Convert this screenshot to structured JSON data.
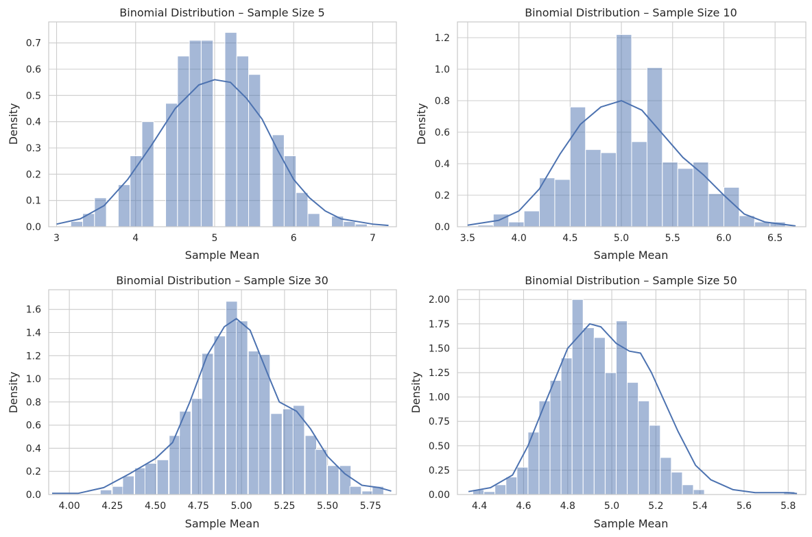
{
  "style": {
    "bar_color": "#4c72b0",
    "grid_color": "#cccccc",
    "frame_color": "#cccccc"
  },
  "chart_data": [
    {
      "type": "bar",
      "title": "Binomial Distribution – Sample Size 5",
      "xlabel": "Sample Mean",
      "ylabel": "Density",
      "xlim": [
        2.9,
        7.3
      ],
      "ylim": [
        0,
        0.78
      ],
      "xticks": [
        3,
        4,
        5,
        6,
        7
      ],
      "xtick_labels": [
        "3",
        "4",
        "5",
        "6",
        "7"
      ],
      "yticks": [
        0.0,
        0.1,
        0.2,
        0.3,
        0.4,
        0.5,
        0.6,
        0.7
      ],
      "ytick_labels": [
        "0.0",
        "0.1",
        "0.2",
        "0.3",
        "0.4",
        "0.5",
        "0.6",
        "0.7"
      ],
      "bin_width": 0.15,
      "bins": [
        {
          "x": 3.18,
          "h": 0.02
        },
        {
          "x": 3.33,
          "h": 0.05
        },
        {
          "x": 3.48,
          "h": 0.11
        },
        {
          "x": 3.78,
          "h": 0.16
        },
        {
          "x": 3.93,
          "h": 0.27
        },
        {
          "x": 4.08,
          "h": 0.4
        },
        {
          "x": 4.38,
          "h": 0.47
        },
        {
          "x": 4.53,
          "h": 0.65
        },
        {
          "x": 4.68,
          "h": 0.71
        },
        {
          "x": 4.83,
          "h": 0.71
        },
        {
          "x": 5.13,
          "h": 0.74
        },
        {
          "x": 5.28,
          "h": 0.65
        },
        {
          "x": 5.43,
          "h": 0.58
        },
        {
          "x": 5.73,
          "h": 0.35
        },
        {
          "x": 5.88,
          "h": 0.27
        },
        {
          "x": 6.03,
          "h": 0.13
        },
        {
          "x": 6.18,
          "h": 0.05
        },
        {
          "x": 6.48,
          "h": 0.04
        },
        {
          "x": 6.63,
          "h": 0.02
        },
        {
          "x": 6.78,
          "h": 0.01
        }
      ],
      "kde": [
        [
          3.0,
          0.01
        ],
        [
          3.3,
          0.03
        ],
        [
          3.6,
          0.08
        ],
        [
          3.9,
          0.18
        ],
        [
          4.2,
          0.31
        ],
        [
          4.5,
          0.45
        ],
        [
          4.8,
          0.54
        ],
        [
          5.0,
          0.56
        ],
        [
          5.2,
          0.55
        ],
        [
          5.4,
          0.49
        ],
        [
          5.6,
          0.41
        ],
        [
          5.8,
          0.29
        ],
        [
          6.0,
          0.18
        ],
        [
          6.2,
          0.11
        ],
        [
          6.4,
          0.06
        ],
        [
          6.6,
          0.03
        ],
        [
          6.8,
          0.02
        ],
        [
          7.0,
          0.01
        ],
        [
          7.2,
          0.005
        ]
      ]
    },
    {
      "type": "bar",
      "title": "Binomial Distribution – Sample Size 10",
      "xlabel": "Sample Mean",
      "ylabel": "Density",
      "xlim": [
        3.4,
        6.8
      ],
      "ylim": [
        0,
        1.3
      ],
      "xticks": [
        3.5,
        4.0,
        4.5,
        5.0,
        5.5,
        6.0,
        6.5
      ],
      "xtick_labels": [
        "3.5",
        "4.0",
        "4.5",
        "5.0",
        "5.5",
        "6.0",
        "6.5"
      ],
      "yticks": [
        0.0,
        0.2,
        0.4,
        0.6,
        0.8,
        1.0,
        1.2
      ],
      "ytick_labels": [
        "0.0",
        "0.2",
        "0.4",
        "0.6",
        "0.8",
        "1.0",
        "1.2"
      ],
      "bin_width": 0.15,
      "bins": [
        {
          "x": 3.6,
          "h": 0.01
        },
        {
          "x": 3.75,
          "h": 0.08
        },
        {
          "x": 3.9,
          "h": 0.03
        },
        {
          "x": 4.05,
          "h": 0.1
        },
        {
          "x": 4.2,
          "h": 0.31
        },
        {
          "x": 4.35,
          "h": 0.3
        },
        {
          "x": 4.5,
          "h": 0.76
        },
        {
          "x": 4.65,
          "h": 0.49
        },
        {
          "x": 4.8,
          "h": 0.47
        },
        {
          "x": 4.95,
          "h": 1.22
        },
        {
          "x": 5.1,
          "h": 0.54
        },
        {
          "x": 5.25,
          "h": 1.01
        },
        {
          "x": 5.4,
          "h": 0.41
        },
        {
          "x": 5.55,
          "h": 0.37
        },
        {
          "x": 5.7,
          "h": 0.41
        },
        {
          "x": 5.85,
          "h": 0.21
        },
        {
          "x": 6.0,
          "h": 0.25
        },
        {
          "x": 6.15,
          "h": 0.07
        },
        {
          "x": 6.3,
          "h": 0.03
        },
        {
          "x": 6.45,
          "h": 0.03
        }
      ],
      "kde": [
        [
          3.5,
          0.01
        ],
        [
          3.8,
          0.04
        ],
        [
          4.0,
          0.1
        ],
        [
          4.2,
          0.24
        ],
        [
          4.4,
          0.46
        ],
        [
          4.6,
          0.65
        ],
        [
          4.8,
          0.76
        ],
        [
          5.0,
          0.8
        ],
        [
          5.2,
          0.74
        ],
        [
          5.4,
          0.59
        ],
        [
          5.6,
          0.44
        ],
        [
          5.8,
          0.33
        ],
        [
          6.0,
          0.2
        ],
        [
          6.2,
          0.08
        ],
        [
          6.4,
          0.03
        ],
        [
          6.7,
          0.005
        ]
      ]
    },
    {
      "type": "bar",
      "title": "Binomial Distribution – Sample Size 30",
      "xlabel": "Sample Mean",
      "ylabel": "Density",
      "xlim": [
        3.88,
        5.9
      ],
      "ylim": [
        0,
        1.77
      ],
      "xticks": [
        4.0,
        4.25,
        4.5,
        4.75,
        5.0,
        5.25,
        5.5,
        5.75
      ],
      "xtick_labels": [
        "4.00",
        "4.25",
        "4.50",
        "4.75",
        "5.00",
        "5.25",
        "5.50",
        "5.75"
      ],
      "yticks": [
        0.0,
        0.2,
        0.4,
        0.6,
        0.8,
        1.0,
        1.2,
        1.4,
        1.6
      ],
      "ytick_labels": [
        "0.0",
        "0.2",
        "0.4",
        "0.6",
        "0.8",
        "1.0",
        "1.2",
        "1.4",
        "1.6"
      ],
      "bin_width": 0.066,
      "bins": [
        {
          "x": 4.18,
          "h": 0.04
        },
        {
          "x": 4.25,
          "h": 0.07
        },
        {
          "x": 4.31,
          "h": 0.16
        },
        {
          "x": 4.38,
          "h": 0.23
        },
        {
          "x": 4.44,
          "h": 0.27
        },
        {
          "x": 4.51,
          "h": 0.3
        },
        {
          "x": 4.58,
          "h": 0.51
        },
        {
          "x": 4.64,
          "h": 0.72
        },
        {
          "x": 4.71,
          "h": 0.83
        },
        {
          "x": 4.77,
          "h": 1.22
        },
        {
          "x": 4.84,
          "h": 1.37
        },
        {
          "x": 4.91,
          "h": 1.67
        },
        {
          "x": 4.97,
          "h": 1.5
        },
        {
          "x": 5.04,
          "h": 1.24
        },
        {
          "x": 5.1,
          "h": 1.21
        },
        {
          "x": 5.17,
          "h": 0.7
        },
        {
          "x": 5.24,
          "h": 0.74
        },
        {
          "x": 5.3,
          "h": 0.77
        },
        {
          "x": 5.37,
          "h": 0.51
        },
        {
          "x": 5.43,
          "h": 0.39
        },
        {
          "x": 5.5,
          "h": 0.25
        },
        {
          "x": 5.57,
          "h": 0.25
        },
        {
          "x": 5.63,
          "h": 0.07
        },
        {
          "x": 5.7,
          "h": 0.03
        },
        {
          "x": 5.76,
          "h": 0.07
        }
      ],
      "kde": [
        [
          3.9,
          0.01
        ],
        [
          4.05,
          0.01
        ],
        [
          4.2,
          0.06
        ],
        [
          4.35,
          0.18
        ],
        [
          4.5,
          0.31
        ],
        [
          4.6,
          0.45
        ],
        [
          4.7,
          0.8
        ],
        [
          4.8,
          1.2
        ],
        [
          4.9,
          1.45
        ],
        [
          4.97,
          1.52
        ],
        [
          5.05,
          1.42
        ],
        [
          5.15,
          1.05
        ],
        [
          5.22,
          0.8
        ],
        [
          5.32,
          0.72
        ],
        [
          5.4,
          0.57
        ],
        [
          5.5,
          0.33
        ],
        [
          5.6,
          0.18
        ],
        [
          5.7,
          0.08
        ],
        [
          5.8,
          0.06
        ],
        [
          5.87,
          0.03
        ]
      ]
    },
    {
      "type": "bar",
      "title": "Binomial Distribution – Sample Size 50",
      "xlabel": "Sample Mean",
      "ylabel": "Density",
      "xlim": [
        4.3,
        5.88
      ],
      "ylim": [
        0,
        2.1
      ],
      "xticks": [
        4.4,
        4.6,
        4.8,
        5.0,
        5.2,
        5.4,
        5.6,
        5.8
      ],
      "xtick_labels": [
        "4.4",
        "4.6",
        "4.8",
        "5.0",
        "5.2",
        "5.4",
        "5.6",
        "5.8"
      ],
      "yticks": [
        0.0,
        0.25,
        0.5,
        0.75,
        1.0,
        1.25,
        1.5,
        1.75,
        2.0
      ],
      "ytick_labels": [
        "0.00",
        "0.25",
        "0.50",
        "0.75",
        "1.00",
        "1.25",
        "1.50",
        "1.75",
        "2.00"
      ],
      "bin_width": 0.05,
      "bins": [
        {
          "x": 4.37,
          "h": 0.05
        },
        {
          "x": 4.42,
          "h": 0.03
        },
        {
          "x": 4.47,
          "h": 0.1
        },
        {
          "x": 4.52,
          "h": 0.18
        },
        {
          "x": 4.57,
          "h": 0.28
        },
        {
          "x": 4.62,
          "h": 0.64
        },
        {
          "x": 4.67,
          "h": 0.96
        },
        {
          "x": 4.72,
          "h": 1.17
        },
        {
          "x": 4.77,
          "h": 1.4
        },
        {
          "x": 4.82,
          "h": 2.0
        },
        {
          "x": 4.87,
          "h": 1.71
        },
        {
          "x": 4.92,
          "h": 1.61
        },
        {
          "x": 4.97,
          "h": 1.25
        },
        {
          "x": 5.02,
          "h": 1.78
        },
        {
          "x": 5.07,
          "h": 1.15
        },
        {
          "x": 5.12,
          "h": 0.96
        },
        {
          "x": 5.17,
          "h": 0.71
        },
        {
          "x": 5.22,
          "h": 0.38
        },
        {
          "x": 5.27,
          "h": 0.23
        },
        {
          "x": 5.32,
          "h": 0.1
        },
        {
          "x": 5.37,
          "h": 0.05
        },
        {
          "x": 5.78,
          "h": 0.03
        }
      ],
      "kde": [
        [
          4.35,
          0.03
        ],
        [
          4.45,
          0.07
        ],
        [
          4.55,
          0.2
        ],
        [
          4.62,
          0.5
        ],
        [
          4.7,
          0.95
        ],
        [
          4.8,
          1.5
        ],
        [
          4.9,
          1.75
        ],
        [
          4.95,
          1.72
        ],
        [
          5.02,
          1.55
        ],
        [
          5.08,
          1.47
        ],
        [
          5.13,
          1.45
        ],
        [
          5.18,
          1.25
        ],
        [
          5.25,
          0.9
        ],
        [
          5.3,
          0.65
        ],
        [
          5.38,
          0.3
        ],
        [
          5.45,
          0.15
        ],
        [
          5.55,
          0.05
        ],
        [
          5.65,
          0.02
        ],
        [
          5.8,
          0.02
        ],
        [
          5.84,
          0.01
        ]
      ]
    }
  ]
}
